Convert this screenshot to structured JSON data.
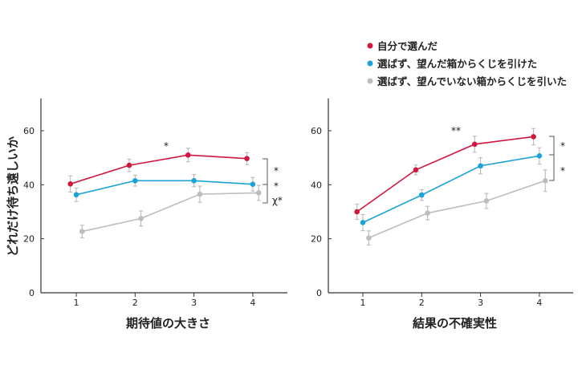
{
  "legend": {
    "items": [
      {
        "label": "自分で選んだ",
        "color": "#d0173f"
      },
      {
        "label": "選ばず、望んだ箱からくじを引けた",
        "color": "#1aa3d6"
      },
      {
        "label": "選ばず、望んでいない箱からくじを引いた",
        "color": "#bdbdbd"
      }
    ]
  },
  "chart_data": [
    {
      "type": "line",
      "xlabel": "期待値の大きさ",
      "ylabel": "どれだけ待ち遠しいか",
      "x": [
        1,
        2,
        3,
        4
      ],
      "xticks": [
        "1",
        "2",
        "3",
        "4"
      ],
      "yticks": [
        "0",
        "20",
        "40",
        "60"
      ],
      "ylim": [
        0,
        72
      ],
      "series": [
        {
          "values": [
            40.3,
            47.2,
            51,
            49.7
          ],
          "errors": [
            3,
            2.3,
            2.5,
            2.2
          ],
          "color": "#d0173f"
        },
        {
          "values": [
            36.3,
            41.5,
            41.5,
            40.2
          ],
          "errors": [
            2.5,
            2,
            2.2,
            2.5
          ],
          "color": "#1aa3d6"
        },
        {
          "values": [
            22.7,
            27.5,
            36.5,
            37
          ],
          "errors": [
            2.3,
            2.8,
            3,
            2.8
          ],
          "color": "#bdbdbd"
        }
      ],
      "annotations": [
        "*",
        "*",
        "*",
        "χ*"
      ]
    },
    {
      "type": "line",
      "xlabel": "結果の不確実性",
      "ylabel": "",
      "x": [
        1,
        2,
        3,
        4
      ],
      "xticks": [
        "1",
        "2",
        "3",
        "4"
      ],
      "yticks": [
        "0",
        "20",
        "40",
        "60"
      ],
      "ylim": [
        0,
        72
      ],
      "series": [
        {
          "values": [
            30,
            45.5,
            55,
            57.8
          ],
          "errors": [
            2.8,
            1.8,
            3,
            3
          ],
          "color": "#d0173f"
        },
        {
          "values": [
            26,
            36.2,
            47,
            50.7
          ],
          "errors": [
            3,
            2,
            3,
            3
          ],
          "color": "#1aa3d6"
        },
        {
          "values": [
            20.3,
            29.5,
            34,
            41.5
          ],
          "errors": [
            2.6,
            2.5,
            2.8,
            4
          ],
          "color": "#bdbdbd"
        }
      ],
      "annotations": [
        "**",
        "*",
        "*"
      ]
    }
  ]
}
